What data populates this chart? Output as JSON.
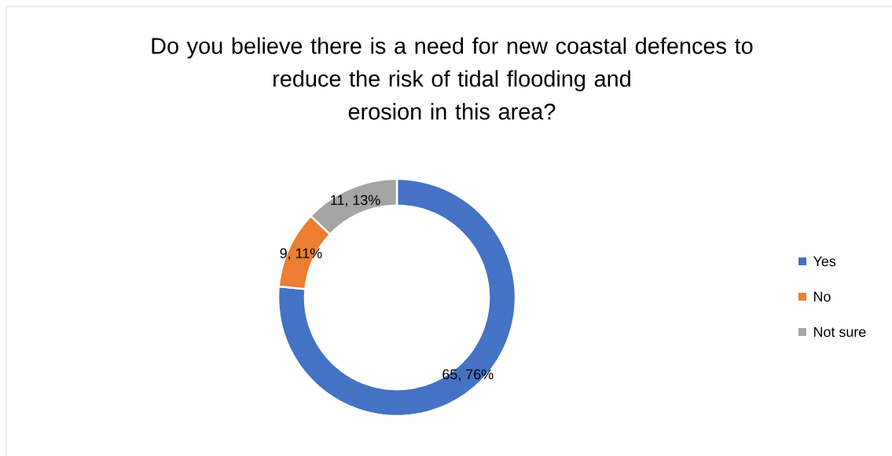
{
  "chart_data": {
    "type": "donut",
    "title": "Do you believe there is a need for new coastal defences to\nreduce the risk of tidal flooding and\nerosion in this area?",
    "categories": [
      "Yes",
      "No",
      "Not sure"
    ],
    "values": [
      65,
      9,
      11
    ],
    "colors": [
      "#4472c4",
      "#ed7d31",
      "#a5a5a5"
    ],
    "value_labels": [
      "65, 76%",
      "9, 11%",
      "11, 13%"
    ],
    "legend": "right"
  }
}
